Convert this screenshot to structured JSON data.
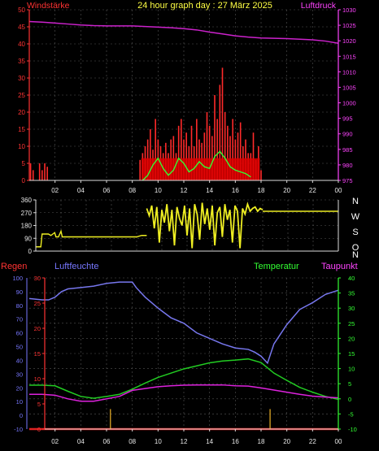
{
  "header": {
    "left_label": "Windstärke",
    "title": "24 hour graph day : 27 März 2025",
    "right_label": "Luftdruck"
  },
  "legend2": {
    "regen": "Regen",
    "luftfeuchte": "Luftfeuchte",
    "temperatur": "Temperatur",
    "taupunkt": "Taupunkt"
  },
  "colors": {
    "background": "#000000",
    "grid": "#555555",
    "axis": "#dcdcdc",
    "wind": "#ff2a2a",
    "gust_fill": "#dd0000",
    "wind_avg": "#33ff33",
    "pressure": "#cc22cc",
    "direction": "#eeee22",
    "humidity": "#7777ee",
    "temperature": "#22cc22",
    "dewpoint": "#dd22dd",
    "rain": "#dd2222",
    "rain_event": "#cc9922",
    "left_label": "#ff3333",
    "right_label": "#ff44ff",
    "title": "#ffff44",
    "humidity_label": "#7777ff",
    "temp_label": "#33ff33",
    "tick_text": "#e8e8e8"
  },
  "chart_data": [
    {
      "type": "line",
      "title": "24 hour graph day : 27 März 2025",
      "x_range": [
        0,
        24
      ],
      "x_tick_labels": [
        "02",
        "04",
        "06",
        "08",
        "10",
        "12",
        "14",
        "16",
        "18",
        "20",
        "22",
        "00"
      ],
      "grid": true,
      "left_axis": {
        "label": "Windstärke",
        "range": [
          0,
          50
        ],
        "ticks": [
          "0",
          "5",
          "10",
          "15",
          "20",
          "25",
          "30",
          "35",
          "40",
          "45",
          "50"
        ]
      },
      "right_axis": {
        "label": "Luftdruck",
        "range": [
          975,
          1030
        ],
        "ticks": [
          "975",
          "980",
          "985",
          "990",
          "995",
          "1000",
          "1005",
          "1010",
          "1015",
          "1020",
          "1025",
          "1030"
        ]
      },
      "series": [
        {
          "name": "Luftdruck",
          "axis": "right",
          "x": [
            0,
            1,
            2,
            3,
            4,
            5,
            6,
            7,
            8,
            9,
            10,
            11,
            12,
            13,
            14,
            15,
            16,
            17,
            18,
            19,
            20,
            21,
            22,
            23,
            24
          ],
          "y": [
            1026.2,
            1026.0,
            1025.7,
            1025.4,
            1025.1,
            1024.9,
            1024.8,
            1024.8,
            1024.8,
            1024.6,
            1024.4,
            1024.2,
            1023.9,
            1023.5,
            1022.8,
            1022.2,
            1021.6,
            1021.2,
            1020.9,
            1020.8,
            1020.7,
            1020.5,
            1020.3,
            1019.9,
            1019.2
          ]
        },
        {
          "name": "wind average",
          "axis": "left",
          "x": [
            8.8,
            9.2,
            9.6,
            10.0,
            10.4,
            10.8,
            11.2,
            11.6,
            12.0,
            12.4,
            12.8,
            13.2,
            13.6,
            14.0,
            14.4,
            14.8,
            15.2,
            15.6,
            16.0,
            16.4,
            16.8,
            17.2
          ],
          "y": [
            0,
            1.5,
            4.5,
            6.5,
            3.5,
            1.5,
            3,
            6.5,
            5,
            2.5,
            3.5,
            5.5,
            4,
            3.5,
            7,
            8.5,
            6.5,
            4,
            3,
            2.5,
            2,
            1
          ]
        },
        {
          "name": "wind gusts",
          "axis": "left",
          "style": "bars",
          "x": [
            0.1,
            0.3,
            0.5,
            0.8,
            1.0,
            1.2,
            1.4,
            8.6,
            8.8,
            9.0,
            9.2,
            9.4,
            9.6,
            9.8,
            10.0,
            10.2,
            10.4,
            10.6,
            10.8,
            11.0,
            11.2,
            11.4,
            11.6,
            11.8,
            12.0,
            12.2,
            12.4,
            12.6,
            12.8,
            13.0,
            13.2,
            13.4,
            13.6,
            13.8,
            14.0,
            14.2,
            14.4,
            14.6,
            14.8,
            15.0,
            15.2,
            15.4,
            15.6,
            15.8,
            16.0,
            16.2,
            16.4,
            16.6,
            16.8,
            17.0,
            17.2,
            17.4,
            17.6,
            17.8,
            18.0
          ],
          "y": [
            5,
            3,
            0,
            5,
            3,
            5,
            4,
            6,
            8,
            10,
            12,
            15,
            9,
            18,
            12,
            10,
            8,
            11,
            8,
            12,
            13,
            8,
            16,
            18,
            12,
            14,
            10,
            16,
            10,
            18,
            12,
            11,
            14,
            20,
            16,
            13,
            25,
            18,
            28,
            33,
            20,
            16,
            13,
            18,
            12,
            14,
            17,
            10,
            12,
            8,
            8,
            14,
            6,
            10,
            3
          ]
        }
      ]
    },
    {
      "type": "line",
      "x_range": [
        0,
        24
      ],
      "y_range": [
        0,
        360
      ],
      "grid": true,
      "y_ticks": [
        "0",
        "90",
        "180",
        "270",
        "360"
      ],
      "direction_labels": [
        "N",
        "W",
        "S",
        "O",
        "N"
      ],
      "series": [
        {
          "name": "wind direction",
          "x": [
            0.0,
            0.4,
            0.5,
            1.0,
            1.2,
            1.5,
            1.6,
            1.8,
            2.0,
            2.1,
            8.0,
            8.4,
            8.8
          ],
          "y": [
            30,
            30,
            120,
            120,
            110,
            130,
            100,
            100,
            140,
            100,
            100,
            110,
            110
          ]
        },
        {
          "name": "wind direction (variable)",
          "x": [
            8.8,
            9.0,
            9.2,
            9.4,
            9.6,
            9.8,
            10.0,
            10.2,
            10.4,
            10.6,
            10.8,
            11.0,
            11.2,
            11.4,
            11.6,
            11.8,
            12.0,
            12.2,
            12.4,
            12.6,
            12.8,
            13.0,
            13.2,
            13.4,
            13.6,
            13.8,
            14.0,
            14.2,
            14.4,
            14.6,
            14.8,
            15.0,
            15.2,
            15.4,
            15.6,
            15.8,
            16.0,
            16.2,
            16.4,
            16.6,
            16.8,
            17.0,
            17.2,
            17.4,
            17.6,
            17.8,
            18.0
          ],
          "y": [
            300,
            250,
            320,
            160,
            310,
            60,
            290,
            200,
            330,
            140,
            290,
            40,
            310,
            230,
            180,
            320,
            110,
            300,
            20,
            330,
            260,
            80,
            340,
            190,
            300,
            150,
            320,
            40,
            270,
            310,
            100,
            330,
            220,
            290,
            60,
            320,
            280,
            20,
            300,
            260,
            330,
            280,
            300,
            310,
            280,
            300,
            290
          ]
        },
        {
          "name": "wind direction (late)",
          "x": [
            18.0,
            24.0
          ],
          "y": [
            280,
            280
          ]
        }
      ]
    },
    {
      "type": "line",
      "x_range": [
        0,
        24
      ],
      "x_tick_labels": [
        "02",
        "04",
        "06",
        "08",
        "10",
        "12",
        "14",
        "16",
        "18",
        "20",
        "22",
        "00"
      ],
      "grid": true,
      "axes": {
        "humidity": {
          "label": "Luftfeuchte",
          "range": [
            -10,
            100
          ],
          "ticks": [
            "-10",
            "0",
            "10",
            "20",
            "30",
            "40",
            "50",
            "60",
            "70",
            "80",
            "90",
            "100"
          ]
        },
        "rain": {
          "label": "Regen",
          "range": [
            0,
            30
          ],
          "ticks": [
            "0",
            "5",
            "10",
            "15",
            "20",
            "25",
            "30"
          ]
        },
        "temperature": {
          "label": "Temperatur",
          "range": [
            -10,
            40
          ],
          "ticks": [
            "-10",
            "-5",
            "0",
            "5",
            "10",
            "15",
            "20",
            "25",
            "30",
            "35",
            "40"
          ]
        }
      },
      "series": [
        {
          "name": "Luftfeuchte",
          "axis": "humidity",
          "x": [
            0,
            1,
            1.5,
            2,
            2.5,
            3,
            4,
            5,
            6,
            7,
            7.5,
            8,
            8.3,
            9,
            10,
            11,
            12,
            13,
            14,
            15,
            16,
            17,
            17.5,
            18,
            18.5,
            19,
            20,
            21,
            22,
            23,
            24
          ],
          "y": [
            85,
            84,
            84,
            86,
            90,
            92,
            93,
            94,
            96,
            97,
            97,
            97,
            93,
            86,
            78,
            71,
            67,
            60,
            56,
            52,
            49,
            48,
            46,
            43,
            38,
            52,
            66,
            77,
            82,
            88,
            91
          ]
        },
        {
          "name": "Temperatur",
          "axis": "temperature",
          "x": [
            0,
            1,
            2,
            3,
            4,
            5,
            6,
            7,
            8,
            9,
            10,
            11,
            12,
            13,
            14,
            15,
            16,
            17,
            18,
            19,
            20,
            21,
            22,
            23,
            24
          ],
          "y": [
            4.5,
            4.5,
            4.3,
            2.5,
            0.8,
            0.2,
            0.8,
            1.5,
            3.2,
            5.2,
            7.1,
            8.5,
            9.9,
            10.9,
            11.9,
            12.5,
            12.8,
            13.2,
            12.0,
            8.5,
            6.1,
            3.8,
            2.2,
            0.8,
            -0.2
          ]
        },
        {
          "name": "Taupunkt",
          "axis": "temperature",
          "x": [
            0,
            1,
            2,
            3,
            4,
            5,
            6,
            7,
            8,
            9,
            10,
            11,
            12,
            13,
            14,
            15,
            16,
            17,
            18,
            19,
            20,
            21,
            22,
            23,
            24
          ],
          "y": [
            1.5,
            1.5,
            1.2,
            0.0,
            -0.8,
            -0.8,
            0.0,
            0.8,
            2.8,
            3.4,
            4.0,
            4.3,
            4.5,
            4.6,
            4.6,
            4.6,
            4.3,
            4.2,
            3.6,
            2.9,
            2.2,
            1.5,
            0.9,
            0.6,
            0.3
          ]
        },
        {
          "name": "Regen",
          "axis": "rain",
          "x": [
            0,
            24
          ],
          "y": [
            0,
            0
          ]
        },
        {
          "name": "rain events",
          "axis": "rain",
          "style": "markers",
          "x": [
            6.3,
            18.7
          ],
          "y": [
            3,
            3
          ]
        }
      ]
    }
  ]
}
